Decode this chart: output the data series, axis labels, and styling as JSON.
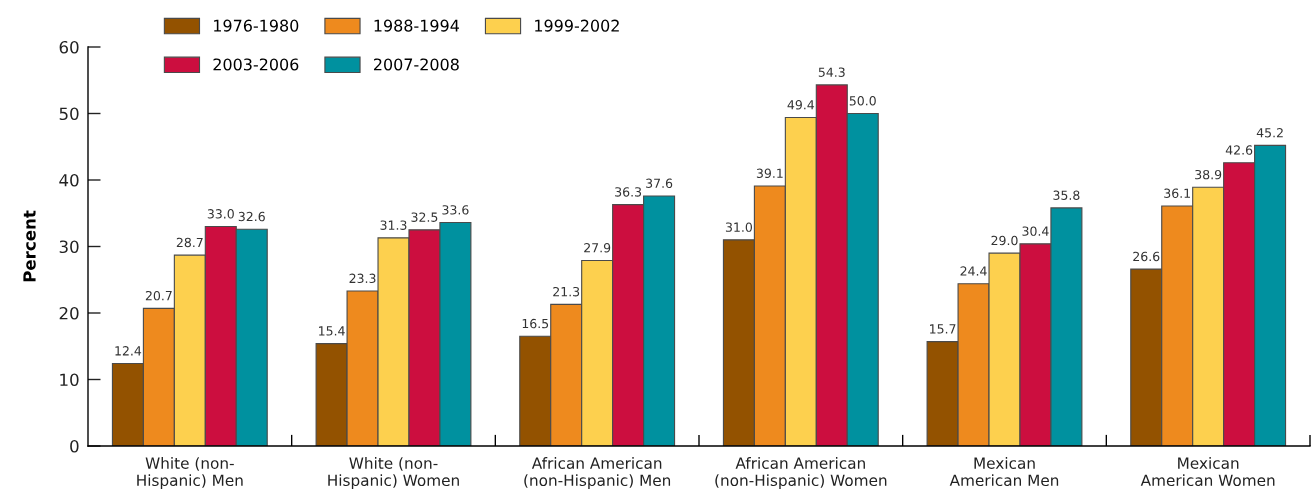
{
  "chart_data": {
    "type": "bar",
    "ylabel": "Percent",
    "categories": [
      "White (non-\nHispanic) Men",
      "White (non-\nHispanic) Women",
      "African American\n(non-Hispanic) Men",
      "African American\n(non-Hispanic) Women",
      "Mexican\nAmerican Men",
      "Mexican\nAmerican Women"
    ],
    "series": [
      {
        "name": "1976-1980",
        "color": "#935200",
        "values": [
          12.4,
          15.4,
          16.5,
          31.0,
          15.7,
          26.6
        ],
        "value_labels": [
          "12.4",
          "15.4",
          "16.5",
          "31.0",
          "15.7",
          "26.6"
        ]
      },
      {
        "name": "1988-1994",
        "color": "#ee8a1e",
        "values": [
          20.7,
          23.3,
          21.3,
          39.1,
          24.4,
          36.1
        ],
        "value_labels": [
          "20.7",
          "23.3",
          "21.3",
          "39.1",
          "24.4",
          "36.1"
        ]
      },
      {
        "name": "1999-2002",
        "color": "#fdd04e",
        "values": [
          28.7,
          31.3,
          27.9,
          49.4,
          29.0,
          38.9
        ],
        "value_labels": [
          "28.7",
          "31.3",
          "27.9",
          "49.4",
          "29.0",
          "38.9"
        ]
      },
      {
        "name": "2003-2006",
        "color": "#cc0e3f",
        "values": [
          33.0,
          32.5,
          36.3,
          54.3,
          30.4,
          42.6
        ],
        "value_labels": [
          "33.0",
          "32.5",
          "36.3",
          "54.3",
          "30.4",
          "42.6"
        ]
      },
      {
        "name": "2007-2008",
        "color": "#00919f",
        "values": [
          32.6,
          33.6,
          37.6,
          50.0,
          35.8,
          45.2
        ],
        "value_labels": [
          "32.6",
          "33.6",
          "37.6",
          "50.0",
          "35.8",
          "45.2"
        ]
      }
    ],
    "ylim": [
      0,
      60
    ],
    "yticks": [
      0,
      10,
      20,
      30,
      40,
      50,
      60
    ],
    "grid": false,
    "legend": "top left"
  }
}
